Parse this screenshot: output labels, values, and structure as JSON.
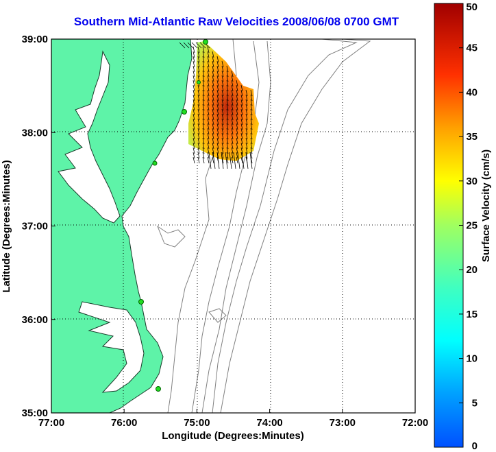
{
  "title": "Southern Mid-Atlantic Raw Velocities 2008/06/08 0700 GMT",
  "x_axis": {
    "label": "Longitude (Degrees:Minutes)",
    "ticks": [
      "77:00",
      "76:00",
      "75:00",
      "74:00",
      "73:00",
      "72:00"
    ]
  },
  "y_axis": {
    "label": "Latitude (Degrees:Minutes)",
    "ticks": [
      "39:00",
      "38:00",
      "37:00",
      "36:00",
      "35:00"
    ]
  },
  "colorbar": {
    "label": "Surface Velocity (cm/s)",
    "ticks": [
      "50",
      "45",
      "40",
      "35",
      "30",
      "25",
      "20",
      "15",
      "10",
      "5",
      "0"
    ],
    "min": 0,
    "max": 50,
    "colormap": "jet"
  },
  "colors": {
    "land": "#5ef3a8",
    "title": "#0000ee",
    "bathymetry": "#808080",
    "station": "#22dd22"
  },
  "stations_visible": 6
}
